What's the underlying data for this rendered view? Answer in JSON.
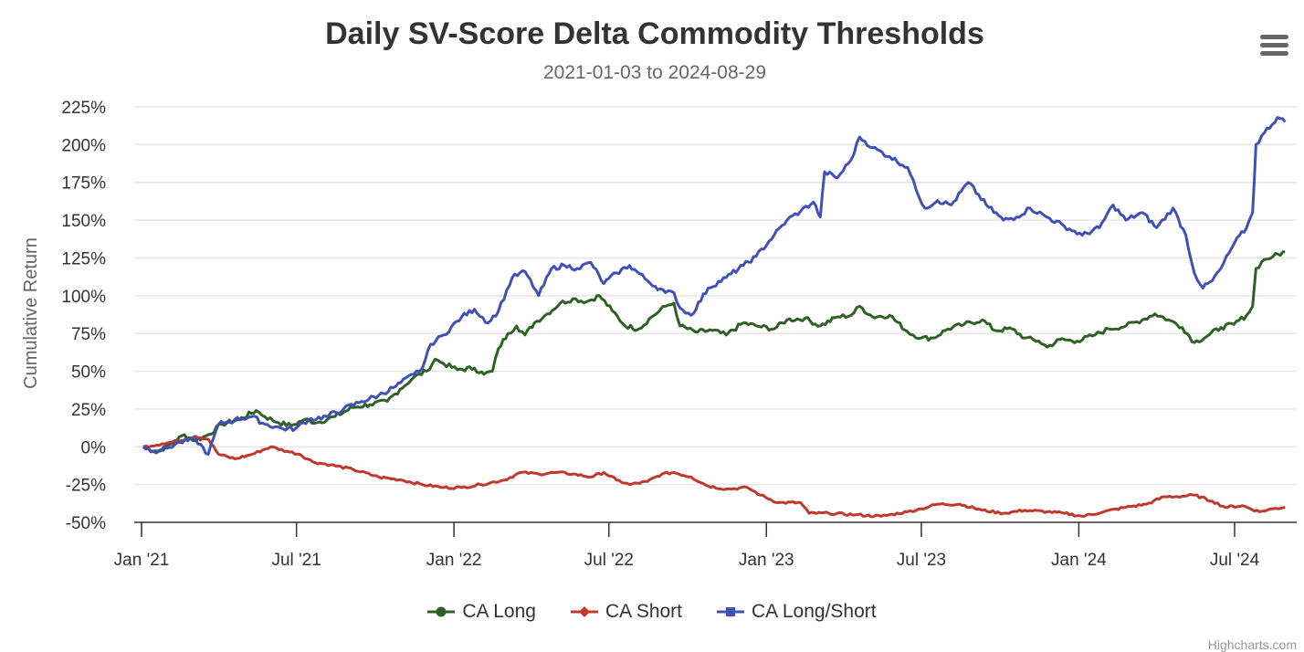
{
  "header": {
    "title": "Daily SV-Score Delta Commodity Thresholds",
    "subtitle": "2021-01-03 to 2024-08-29"
  },
  "menu": {
    "icon": "hamburger-menu-icon"
  },
  "credits": "Highcharts.com",
  "chart_data": {
    "type": "line",
    "title": "Daily SV-Score Delta Commodity Thresholds",
    "subtitle": "2021-01-03 to 2024-08-29",
    "xlabel": "",
    "ylabel": "Cumulative Return",
    "x_type": "datetime",
    "x_range": [
      "2021-01-03",
      "2024-08-29"
    ],
    "x_ticks": [
      {
        "date": "2021-01-01",
        "label": "Jan '21"
      },
      {
        "date": "2021-07-01",
        "label": "Jul '21"
      },
      {
        "date": "2022-01-01",
        "label": "Jan '22"
      },
      {
        "date": "2022-07-01",
        "label": "Jul '22"
      },
      {
        "date": "2023-01-01",
        "label": "Jan '23"
      },
      {
        "date": "2023-07-01",
        "label": "Jul '23"
      },
      {
        "date": "2024-01-01",
        "label": "Jan '24"
      },
      {
        "date": "2024-07-01",
        "label": "Jul '24"
      }
    ],
    "ylim": [
      -50,
      225
    ],
    "y_ticks": [
      -50,
      -25,
      0,
      25,
      50,
      75,
      100,
      125,
      150,
      175,
      200,
      225
    ],
    "y_tick_format": "{v}%",
    "grid": true,
    "legend_position": "bottom-center",
    "series": [
      {
        "name": "CA Long",
        "color": "#2f6126",
        "marker": "circle",
        "points": [
          [
            "2021-01-03",
            0
          ],
          [
            "2021-01-20",
            -3
          ],
          [
            "2021-02-05",
            2
          ],
          [
            "2021-02-20",
            8
          ],
          [
            "2021-03-05",
            4
          ],
          [
            "2021-03-20",
            8
          ],
          [
            "2021-04-05",
            15
          ],
          [
            "2021-04-25",
            18
          ],
          [
            "2021-05-15",
            24
          ],
          [
            "2021-05-25",
            20
          ],
          [
            "2021-06-10",
            16
          ],
          [
            "2021-06-25",
            14
          ],
          [
            "2021-07-10",
            18
          ],
          [
            "2021-07-25",
            16
          ],
          [
            "2021-08-15",
            20
          ],
          [
            "2021-09-05",
            26
          ],
          [
            "2021-09-25",
            28
          ],
          [
            "2021-10-15",
            30
          ],
          [
            "2021-10-30",
            38
          ],
          [
            "2021-11-15",
            46
          ],
          [
            "2021-11-30",
            50
          ],
          [
            "2021-12-10",
            58
          ],
          [
            "2021-12-20",
            55
          ],
          [
            "2022-01-05",
            51
          ],
          [
            "2022-01-25",
            52
          ],
          [
            "2022-02-05",
            48
          ],
          [
            "2022-02-15",
            50
          ],
          [
            "2022-02-22",
            65
          ],
          [
            "2022-03-05",
            75
          ],
          [
            "2022-03-15",
            80
          ],
          [
            "2022-03-25",
            74
          ],
          [
            "2022-04-05",
            82
          ],
          [
            "2022-04-20",
            88
          ],
          [
            "2022-05-05",
            95
          ],
          [
            "2022-05-20",
            98
          ],
          [
            "2022-06-05",
            96
          ],
          [
            "2022-06-20",
            100
          ],
          [
            "2022-07-05",
            90
          ],
          [
            "2022-07-20",
            80
          ],
          [
            "2022-08-05",
            78
          ],
          [
            "2022-08-20",
            86
          ],
          [
            "2022-09-05",
            93
          ],
          [
            "2022-09-15",
            95
          ],
          [
            "2022-09-22",
            80
          ],
          [
            "2022-10-10",
            76
          ],
          [
            "2022-10-30",
            77
          ],
          [
            "2022-11-15",
            74
          ],
          [
            "2022-12-05",
            82
          ],
          [
            "2022-12-20",
            80
          ],
          [
            "2023-01-10",
            78
          ],
          [
            "2023-01-25",
            84
          ],
          [
            "2023-02-15",
            85
          ],
          [
            "2023-03-05",
            80
          ],
          [
            "2023-03-25",
            86
          ],
          [
            "2023-04-10",
            87
          ],
          [
            "2023-04-20",
            93
          ],
          [
            "2023-05-05",
            86
          ],
          [
            "2023-05-25",
            87
          ],
          [
            "2023-06-15",
            76
          ],
          [
            "2023-07-01",
            72
          ],
          [
            "2023-07-15",
            72
          ],
          [
            "2023-08-01",
            78
          ],
          [
            "2023-08-20",
            81
          ],
          [
            "2023-09-10",
            84
          ],
          [
            "2023-09-25",
            77
          ],
          [
            "2023-10-15",
            78
          ],
          [
            "2023-10-30",
            72
          ],
          [
            "2023-11-15",
            70
          ],
          [
            "2023-11-25",
            66
          ],
          [
            "2023-12-10",
            71
          ],
          [
            "2023-12-30",
            70
          ],
          [
            "2024-01-20",
            74
          ],
          [
            "2024-02-05",
            78
          ],
          [
            "2024-02-25",
            80
          ],
          [
            "2024-03-15",
            84
          ],
          [
            "2024-03-30",
            88
          ],
          [
            "2024-04-15",
            84
          ],
          [
            "2024-05-01",
            79
          ],
          [
            "2024-05-15",
            69
          ],
          [
            "2024-06-01",
            74
          ],
          [
            "2024-06-15",
            79
          ],
          [
            "2024-06-30",
            81
          ],
          [
            "2024-07-15",
            87
          ],
          [
            "2024-07-22",
            93
          ],
          [
            "2024-07-26",
            118
          ],
          [
            "2024-08-05",
            124
          ],
          [
            "2024-08-15",
            126
          ],
          [
            "2024-08-29",
            129
          ]
        ]
      },
      {
        "name": "CA Short",
        "color": "#c0392b",
        "marker": "diamond",
        "points": [
          [
            "2021-01-03",
            0
          ],
          [
            "2021-01-25",
            2
          ],
          [
            "2021-02-15",
            4
          ],
          [
            "2021-03-05",
            7
          ],
          [
            "2021-03-20",
            5
          ],
          [
            "2021-04-01",
            -5
          ],
          [
            "2021-04-20",
            -8
          ],
          [
            "2021-05-10",
            -5
          ],
          [
            "2021-06-01",
            0
          ],
          [
            "2021-06-20",
            -3
          ],
          [
            "2021-07-05",
            -5
          ],
          [
            "2021-07-20",
            -10
          ],
          [
            "2021-08-10",
            -12
          ],
          [
            "2021-09-05",
            -15
          ],
          [
            "2021-10-05",
            -20
          ],
          [
            "2021-11-01",
            -22
          ],
          [
            "2021-11-25",
            -25
          ],
          [
            "2021-12-20",
            -27
          ],
          [
            "2022-01-10",
            -27
          ],
          [
            "2022-02-01",
            -25
          ],
          [
            "2022-03-01",
            -22
          ],
          [
            "2022-03-20",
            -17
          ],
          [
            "2022-04-10",
            -18
          ],
          [
            "2022-05-01",
            -17
          ],
          [
            "2022-05-20",
            -18
          ],
          [
            "2022-06-10",
            -20
          ],
          [
            "2022-06-25",
            -17
          ],
          [
            "2022-07-10",
            -22
          ],
          [
            "2022-07-25",
            -25
          ],
          [
            "2022-08-15",
            -23
          ],
          [
            "2022-09-01",
            -18
          ],
          [
            "2022-09-15",
            -17
          ],
          [
            "2022-10-05",
            -20
          ],
          [
            "2022-10-25",
            -26
          ],
          [
            "2022-11-15",
            -28
          ],
          [
            "2022-12-10",
            -27
          ],
          [
            "2022-12-25",
            -32
          ],
          [
            "2023-01-15",
            -37
          ],
          [
            "2023-02-10",
            -37
          ],
          [
            "2023-02-20",
            -44
          ],
          [
            "2023-03-15",
            -44
          ],
          [
            "2023-04-15",
            -45
          ],
          [
            "2023-05-15",
            -46
          ],
          [
            "2023-06-15",
            -43
          ],
          [
            "2023-07-01",
            -41
          ],
          [
            "2023-07-20",
            -38
          ],
          [
            "2023-08-15",
            -38
          ],
          [
            "2023-09-10",
            -42
          ],
          [
            "2023-10-05",
            -44
          ],
          [
            "2023-10-30",
            -42
          ],
          [
            "2023-11-25",
            -43
          ],
          [
            "2023-12-15",
            -44
          ],
          [
            "2024-01-05",
            -46
          ],
          [
            "2024-01-30",
            -43
          ],
          [
            "2024-02-25",
            -40
          ],
          [
            "2024-03-20",
            -38
          ],
          [
            "2024-04-10",
            -33
          ],
          [
            "2024-04-25",
            -33
          ],
          [
            "2024-05-15",
            -32
          ],
          [
            "2024-06-05",
            -36
          ],
          [
            "2024-06-20",
            -40
          ],
          [
            "2024-07-10",
            -39
          ],
          [
            "2024-07-30",
            -43
          ],
          [
            "2024-08-15",
            -41
          ],
          [
            "2024-08-29",
            -40
          ]
        ]
      },
      {
        "name": "CA Long/Short",
        "color": "#4051b5",
        "marker": "square",
        "points": [
          [
            "2021-01-03",
            0
          ],
          [
            "2021-01-15",
            -3
          ],
          [
            "2021-01-30",
            -1
          ],
          [
            "2021-02-15",
            3
          ],
          [
            "2021-03-05",
            5
          ],
          [
            "2021-03-20",
            -5
          ],
          [
            "2021-04-01",
            15
          ],
          [
            "2021-04-20",
            18
          ],
          [
            "2021-05-10",
            20
          ],
          [
            "2021-05-25",
            15
          ],
          [
            "2021-06-15",
            12
          ],
          [
            "2021-06-30",
            12
          ],
          [
            "2021-07-15",
            18
          ],
          [
            "2021-08-05",
            20
          ],
          [
            "2021-08-25",
            25
          ],
          [
            "2021-09-15",
            30
          ],
          [
            "2021-10-05",
            34
          ],
          [
            "2021-10-25",
            40
          ],
          [
            "2021-11-15",
            48
          ],
          [
            "2021-11-25",
            52
          ],
          [
            "2021-12-05",
            68
          ],
          [
            "2021-12-20",
            74
          ],
          [
            "2022-01-10",
            86
          ],
          [
            "2022-01-25",
            91
          ],
          [
            "2022-02-10",
            82
          ],
          [
            "2022-02-22",
            90
          ],
          [
            "2022-03-10",
            112
          ],
          [
            "2022-03-25",
            116
          ],
          [
            "2022-04-10",
            100
          ],
          [
            "2022-04-25",
            118
          ],
          [
            "2022-05-10",
            120
          ],
          [
            "2022-05-25",
            118
          ],
          [
            "2022-06-10",
            122
          ],
          [
            "2022-06-25",
            108
          ],
          [
            "2022-07-10",
            115
          ],
          [
            "2022-07-25",
            120
          ],
          [
            "2022-08-15",
            110
          ],
          [
            "2022-09-05",
            102
          ],
          [
            "2022-09-15",
            102
          ],
          [
            "2022-09-22",
            92
          ],
          [
            "2022-10-05",
            87
          ],
          [
            "2022-10-25",
            105
          ],
          [
            "2022-11-15",
            112
          ],
          [
            "2022-12-05",
            120
          ],
          [
            "2022-12-20",
            126
          ],
          [
            "2023-01-10",
            140
          ],
          [
            "2023-01-25",
            150
          ],
          [
            "2023-02-10",
            156
          ],
          [
            "2023-02-25",
            162
          ],
          [
            "2023-03-05",
            152
          ],
          [
            "2023-03-10",
            182
          ],
          [
            "2023-03-25",
            178
          ],
          [
            "2023-04-10",
            190
          ],
          [
            "2023-04-20",
            205
          ],
          [
            "2023-05-05",
            198
          ],
          [
            "2023-05-25",
            192
          ],
          [
            "2023-06-15",
            185
          ],
          [
            "2023-06-25",
            170
          ],
          [
            "2023-07-05",
            158
          ],
          [
            "2023-07-20",
            163
          ],
          [
            "2023-08-05",
            160
          ],
          [
            "2023-08-25",
            175
          ],
          [
            "2023-09-15",
            160
          ],
          [
            "2023-10-05",
            150
          ],
          [
            "2023-10-20",
            152
          ],
          [
            "2023-11-05",
            158
          ],
          [
            "2023-11-25",
            152
          ],
          [
            "2023-12-15",
            146
          ],
          [
            "2024-01-05",
            140
          ],
          [
            "2024-01-25",
            145
          ],
          [
            "2024-02-10",
            160
          ],
          [
            "2024-02-25",
            150
          ],
          [
            "2024-03-15",
            155
          ],
          [
            "2024-04-01",
            145
          ],
          [
            "2024-04-20",
            158
          ],
          [
            "2024-05-05",
            140
          ],
          [
            "2024-05-15",
            115
          ],
          [
            "2024-05-25",
            105
          ],
          [
            "2024-06-05",
            110
          ],
          [
            "2024-06-15",
            118
          ],
          [
            "2024-07-01",
            135
          ],
          [
            "2024-07-15",
            145
          ],
          [
            "2024-07-22",
            155
          ],
          [
            "2024-07-26",
            200
          ],
          [
            "2024-08-05",
            208
          ],
          [
            "2024-08-20",
            218
          ],
          [
            "2024-08-29",
            215
          ]
        ]
      }
    ]
  }
}
